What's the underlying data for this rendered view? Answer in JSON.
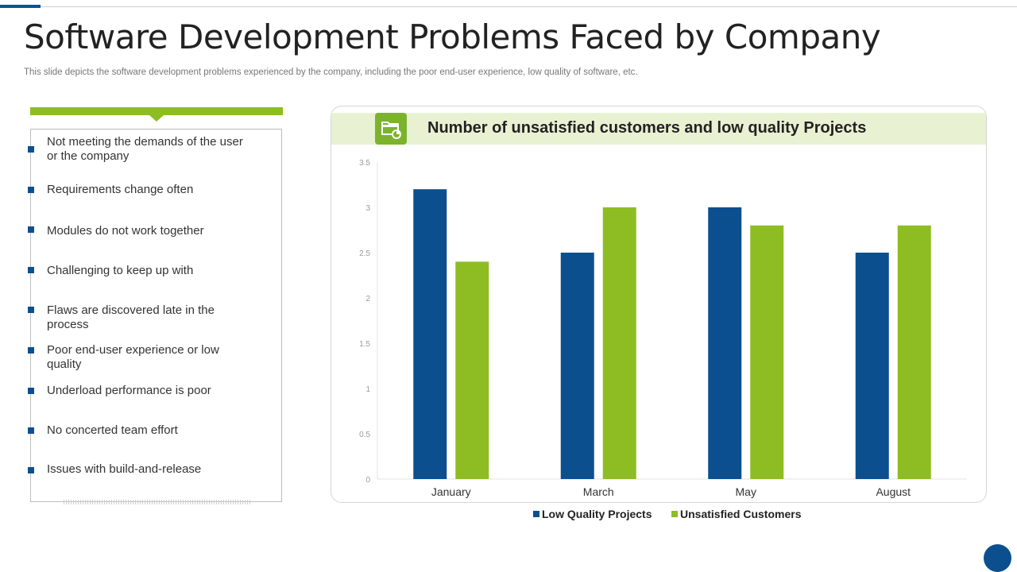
{
  "header": {
    "title": "Software Development Problems Faced by Company",
    "subtitle": "This slide depicts the software development problems experienced by the company, including the poor end-user experience, low quality of software, etc."
  },
  "problems": {
    "items": [
      "Not meeting the demands of the user or the company",
      "Requirements change often",
      "Modules do not work together",
      "Challenging to keep up with",
      "Flaws are discovered late in the process",
      "Poor end-user experience or low quality",
      "Underload performance is poor",
      "No concerted team effort",
      "Issues with build-and-release"
    ]
  },
  "colors": {
    "accent_blue": "#0b4f8f",
    "accent_green": "#8dbd22",
    "header_bg": "#e8f2d2"
  },
  "chart_data": {
    "type": "bar",
    "title": "Number of unsatisfied customers and low quality Projects",
    "categories": [
      "January",
      "March",
      "May",
      "August"
    ],
    "series": [
      {
        "name": "Low Quality Projects",
        "values": [
          3.2,
          2.5,
          3.0,
          2.5
        ],
        "color": "#0b4f8f"
      },
      {
        "name": "Unsatisfied Customers",
        "values": [
          2.4,
          3.0,
          2.8,
          2.8
        ],
        "color": "#8dbd22"
      }
    ],
    "ylim": [
      0,
      3.5
    ],
    "yticks": [
      "0",
      "0.5",
      "1",
      "1.5",
      "2",
      "2.5",
      "3",
      "3.5"
    ],
    "xlabel": "",
    "ylabel": "",
    "legend": "bottom-center",
    "icon": "folder-chart-icon"
  }
}
